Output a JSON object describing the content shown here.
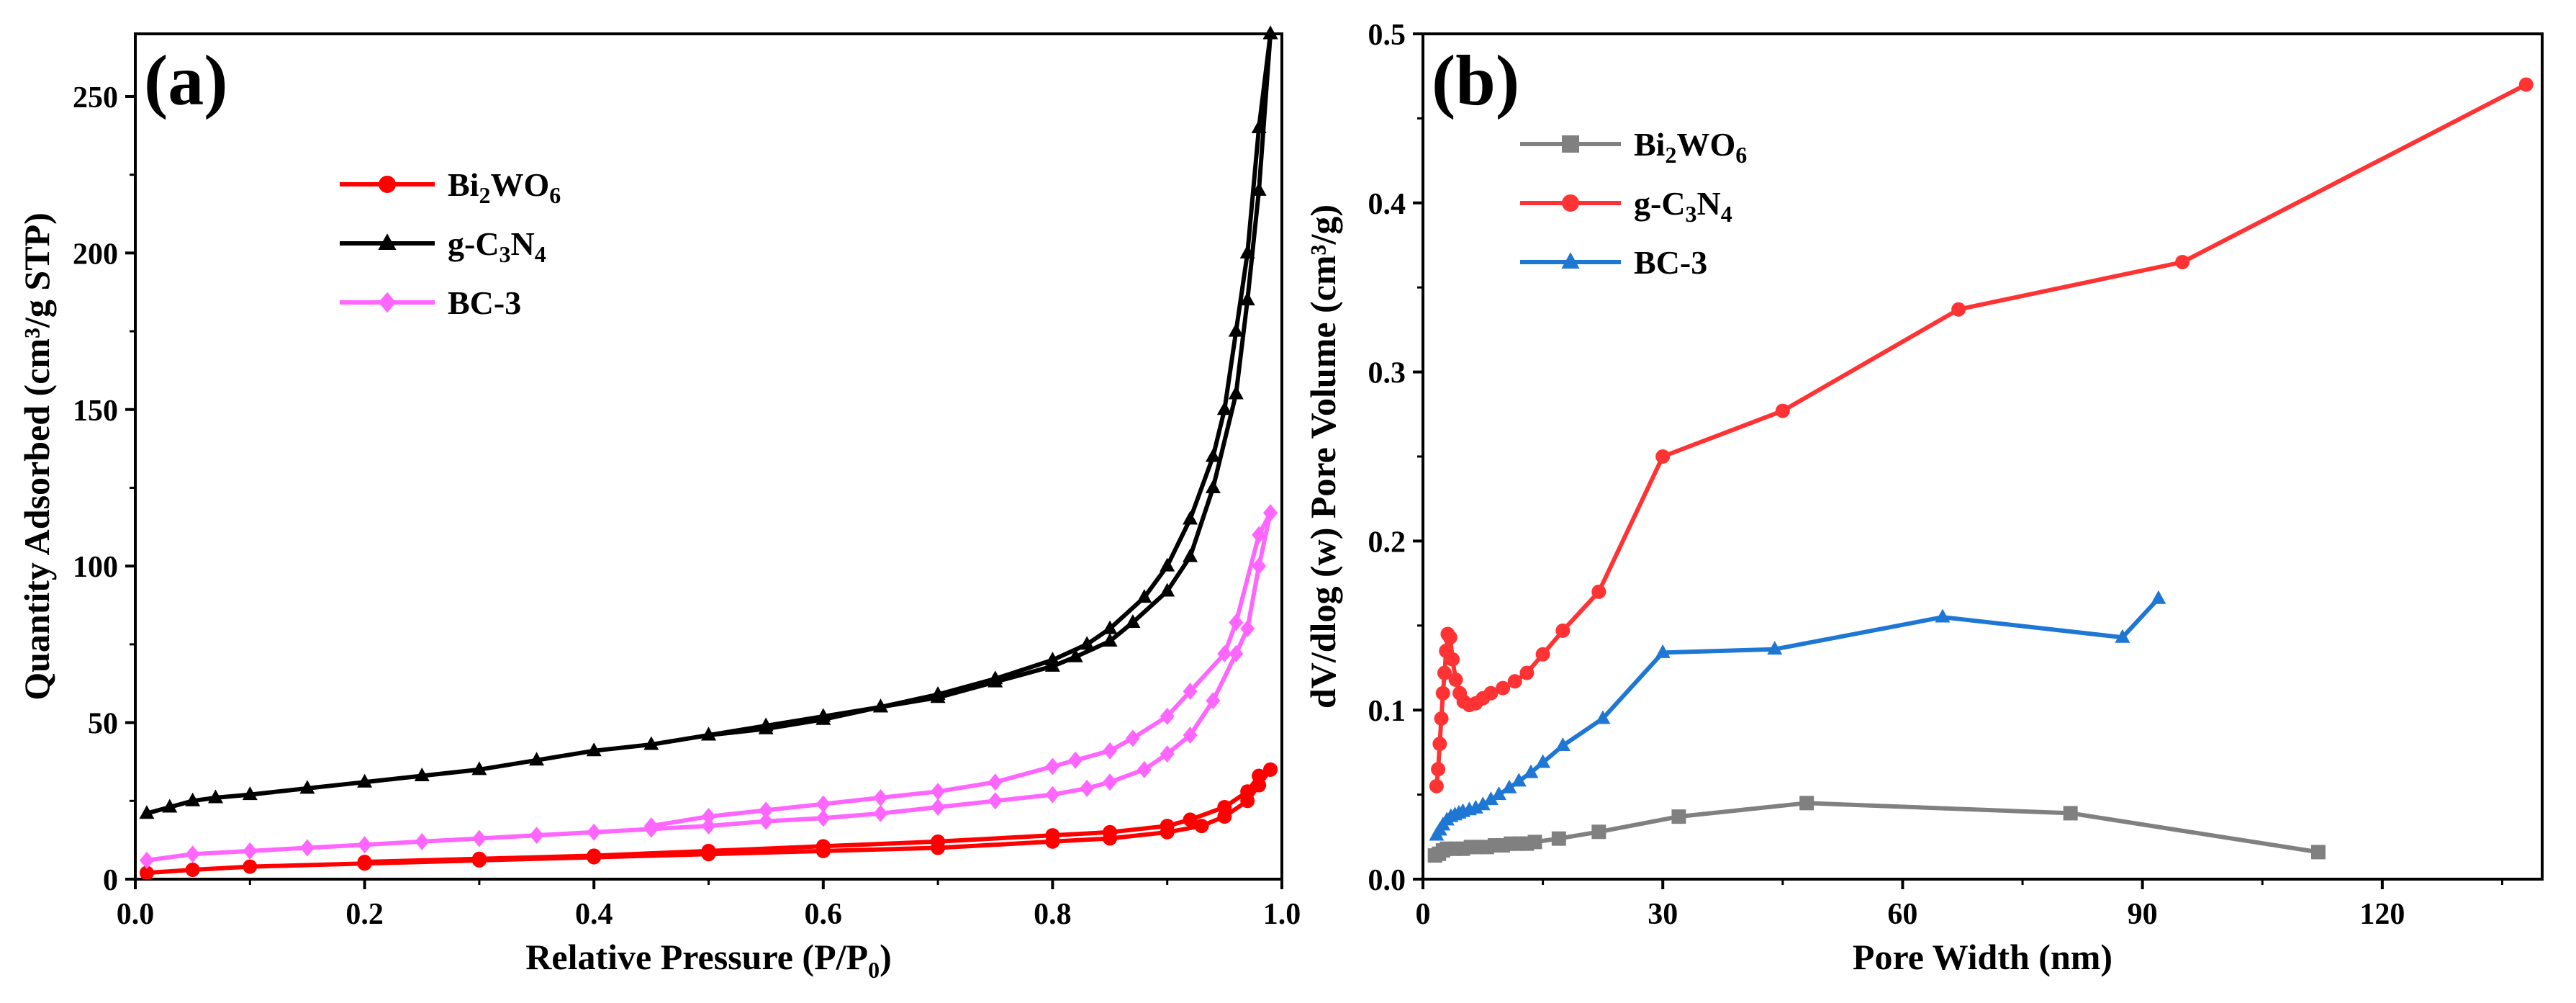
{
  "chart_data": [
    {
      "type": "line",
      "panel_label": "(a)",
      "xlabel": "Relative Pressure (P/P",
      "xlabel_sub": "0",
      "xlabel_end": ")",
      "ylabel": "Quantity Adsorbed (cm³/g STP)",
      "xlim": [
        0,
        1.0
      ],
      "ylim": [
        0,
        270
      ],
      "x_ticks": [
        "0.0",
        "0.2",
        "0.4",
        "0.6",
        "0.8",
        "1.0"
      ],
      "y_ticks": [
        "0",
        "50",
        "100",
        "150",
        "200",
        "250"
      ],
      "legend_position": "top-left",
      "series": [
        {
          "name": "Bi2WO6",
          "label_parts": [
            [
              "Bi",
              ""
            ],
            [
              "2",
              "sub"
            ],
            [
              "WO",
              ""
            ],
            [
              "6",
              "sub"
            ]
          ],
          "color": "#ff0000",
          "marker": "circle",
          "adsorption": [
            [
              0.01,
              2
            ],
            [
              0.05,
              3
            ],
            [
              0.1,
              4
            ],
            [
              0.2,
              5
            ],
            [
              0.3,
              6
            ],
            [
              0.4,
              7
            ],
            [
              0.5,
              8
            ],
            [
              0.6,
              9
            ],
            [
              0.7,
              10
            ],
            [
              0.8,
              12
            ],
            [
              0.85,
              13
            ],
            [
              0.9,
              15
            ],
            [
              0.93,
              17
            ],
            [
              0.95,
              20
            ],
            [
              0.97,
              25
            ],
            [
              0.98,
              30
            ],
            [
              0.99,
              35
            ]
          ],
          "desorption": [
            [
              0.99,
              35
            ],
            [
              0.98,
              33
            ],
            [
              0.97,
              28
            ],
            [
              0.95,
              23
            ],
            [
              0.92,
              19
            ],
            [
              0.9,
              17
            ],
            [
              0.85,
              15
            ],
            [
              0.8,
              14
            ],
            [
              0.7,
              12
            ],
            [
              0.6,
              10.5
            ],
            [
              0.5,
              9
            ],
            [
              0.4,
              7.5
            ],
            [
              0.3,
              6.5
            ],
            [
              0.2,
              5.5
            ]
          ]
        },
        {
          "name": "g-C3N4",
          "label_parts": [
            [
              "g-C",
              ""
            ],
            [
              "3",
              "sub"
            ],
            [
              "N",
              ""
            ],
            [
              "4",
              "sub"
            ]
          ],
          "color": "#000000",
          "marker": "triangle",
          "adsorption": [
            [
              0.01,
              21
            ],
            [
              0.03,
              23
            ],
            [
              0.05,
              25
            ],
            [
              0.07,
              26
            ],
            [
              0.1,
              27
            ],
            [
              0.15,
              29
            ],
            [
              0.2,
              31
            ],
            [
              0.25,
              33
            ],
            [
              0.3,
              35
            ],
            [
              0.35,
              38
            ],
            [
              0.4,
              41
            ],
            [
              0.45,
              43
            ],
            [
              0.5,
              46
            ],
            [
              0.55,
              48
            ],
            [
              0.6,
              51
            ],
            [
              0.65,
              55
            ],
            [
              0.7,
              59
            ],
            [
              0.75,
              64
            ],
            [
              0.8,
              70
            ],
            [
              0.83,
              75
            ],
            [
              0.85,
              80
            ],
            [
              0.88,
              90
            ],
            [
              0.9,
              100
            ],
            [
              0.92,
              115
            ],
            [
              0.94,
              135
            ],
            [
              0.95,
              150
            ],
            [
              0.96,
              175
            ],
            [
              0.97,
              200
            ],
            [
              0.98,
              240
            ],
            [
              0.99,
              270
            ]
          ],
          "desorption": [
            [
              0.99,
              270
            ],
            [
              0.98,
              220
            ],
            [
              0.97,
              185
            ],
            [
              0.96,
              155
            ],
            [
              0.94,
              125
            ],
            [
              0.92,
              103
            ],
            [
              0.9,
              92
            ],
            [
              0.87,
              82
            ],
            [
              0.85,
              76
            ],
            [
              0.82,
              71
            ],
            [
              0.8,
              68
            ],
            [
              0.75,
              63
            ],
            [
              0.7,
              58
            ],
            [
              0.65,
              55
            ],
            [
              0.6,
              52
            ],
            [
              0.55,
              49
            ],
            [
              0.5,
              46
            ]
          ]
        },
        {
          "name": "BC-3",
          "label_parts": [
            [
              "BC-3",
              ""
            ]
          ],
          "color": "#ff66ff",
          "marker": "diamond",
          "adsorption": [
            [
              0.01,
              6
            ],
            [
              0.05,
              8
            ],
            [
              0.1,
              9
            ],
            [
              0.15,
              10
            ],
            [
              0.2,
              11
            ],
            [
              0.25,
              12
            ],
            [
              0.3,
              13
            ],
            [
              0.35,
              14
            ],
            [
              0.4,
              15
            ],
            [
              0.45,
              16
            ],
            [
              0.5,
              17
            ],
            [
              0.55,
              18.5
            ],
            [
              0.6,
              19.5
            ],
            [
              0.65,
              21
            ],
            [
              0.7,
              23
            ],
            [
              0.75,
              25
            ],
            [
              0.8,
              27
            ],
            [
              0.83,
              29
            ],
            [
              0.85,
              31
            ],
            [
              0.88,
              35
            ],
            [
              0.9,
              40
            ],
            [
              0.92,
              46
            ],
            [
              0.94,
              57
            ],
            [
              0.96,
              72
            ],
            [
              0.97,
              80
            ],
            [
              0.98,
              100
            ],
            [
              0.99,
              117
            ]
          ],
          "desorption": [
            [
              0.99,
              117
            ],
            [
              0.98,
              110
            ],
            [
              0.96,
              82
            ],
            [
              0.95,
              72
            ],
            [
              0.92,
              60
            ],
            [
              0.9,
              52
            ],
            [
              0.87,
              45
            ],
            [
              0.85,
              41
            ],
            [
              0.82,
              38
            ],
            [
              0.8,
              36
            ],
            [
              0.75,
              31
            ],
            [
              0.7,
              28
            ],
            [
              0.65,
              26
            ],
            [
              0.6,
              24
            ],
            [
              0.55,
              22
            ],
            [
              0.5,
              20
            ],
            [
              0.45,
              17
            ]
          ]
        }
      ]
    },
    {
      "type": "line",
      "panel_label": "(b)",
      "xlabel": "Pore Width (nm)",
      "ylabel": "dV/dlog (w) Pore Volume (cm³/g)",
      "xlim": [
        0,
        140
      ],
      "ylim": [
        0,
        0.5
      ],
      "x_ticks": [
        "0",
        "30",
        "60",
        "90",
        "120"
      ],
      "x_tick_values": [
        0,
        30,
        60,
        90,
        120
      ],
      "y_ticks": [
        "0.0",
        "0.1",
        "0.2",
        "0.3",
        "0.4",
        "0.5"
      ],
      "legend_position": "top-left",
      "series": [
        {
          "name": "Bi2WO6",
          "label_parts": [
            [
              "Bi",
              ""
            ],
            [
              "2",
              "sub"
            ],
            [
              "WO",
              ""
            ],
            [
              "6",
              "sub"
            ]
          ],
          "color": "#808080",
          "marker": "square",
          "points": [
            [
              1.5,
              0.014
            ],
            [
              2,
              0.015
            ],
            [
              2.5,
              0.017
            ],
            [
              3,
              0.018
            ],
            [
              4,
              0.018
            ],
            [
              5,
              0.018
            ],
            [
              6,
              0.019
            ],
            [
              7,
              0.019
            ],
            [
              8,
              0.019
            ],
            [
              9,
              0.02
            ],
            [
              10,
              0.02
            ],
            [
              11,
              0.021
            ],
            [
              12,
              0.021
            ],
            [
              13,
              0.021
            ],
            [
              14,
              0.022
            ],
            [
              17,
              0.024
            ],
            [
              22,
              0.028
            ],
            [
              32,
              0.037
            ],
            [
              48,
              0.045
            ],
            [
              81,
              0.039
            ],
            [
              112,
              0.016
            ]
          ]
        },
        {
          "name": "g-C3N4",
          "label_parts": [
            [
              "g-C",
              ""
            ],
            [
              "3",
              "sub"
            ],
            [
              "N",
              ""
            ],
            [
              "4",
              "sub"
            ]
          ],
          "color": "#ff3333",
          "marker": "circle",
          "points": [
            [
              1.7,
              0.055
            ],
            [
              1.9,
              0.065
            ],
            [
              2.1,
              0.08
            ],
            [
              2.3,
              0.095
            ],
            [
              2.5,
              0.11
            ],
            [
              2.7,
              0.122
            ],
            [
              2.9,
              0.135
            ],
            [
              3.1,
              0.145
            ],
            [
              3.4,
              0.143
            ],
            [
              3.7,
              0.13
            ],
            [
              4.1,
              0.118
            ],
            [
              4.6,
              0.11
            ],
            [
              5.1,
              0.105
            ],
            [
              5.8,
              0.103
            ],
            [
              6.6,
              0.104
            ],
            [
              7.5,
              0.107
            ],
            [
              8.5,
              0.11
            ],
            [
              10,
              0.113
            ],
            [
              11.5,
              0.117
            ],
            [
              13,
              0.122
            ],
            [
              15,
              0.133
            ],
            [
              17.5,
              0.147
            ],
            [
              22,
              0.17
            ],
            [
              30,
              0.25
            ],
            [
              45,
              0.277
            ],
            [
              67,
              0.337
            ],
            [
              95,
              0.365
            ],
            [
              138,
              0.47
            ]
          ]
        },
        {
          "name": "BC-3",
          "label_parts": [
            [
              "BC-3",
              ""
            ]
          ],
          "color": "#1f77d4",
          "marker": "triangle",
          "points": [
            [
              1.7,
              0.026
            ],
            [
              2.1,
              0.029
            ],
            [
              2.5,
              0.032
            ],
            [
              3,
              0.035
            ],
            [
              3.5,
              0.037
            ],
            [
              4,
              0.038
            ],
            [
              4.5,
              0.039
            ],
            [
              5,
              0.04
            ],
            [
              5.8,
              0.041
            ],
            [
              6.6,
              0.042
            ],
            [
              7.5,
              0.044
            ],
            [
              8.5,
              0.047
            ],
            [
              9.5,
              0.05
            ],
            [
              10.8,
              0.054
            ],
            [
              12,
              0.058
            ],
            [
              13.5,
              0.063
            ],
            [
              15,
              0.069
            ],
            [
              17.5,
              0.079
            ],
            [
              22.5,
              0.095
            ],
            [
              30,
              0.134
            ],
            [
              44,
              0.136
            ],
            [
              65,
              0.155
            ],
            [
              87.5,
              0.143
            ],
            [
              92,
              0.166
            ]
          ]
        }
      ]
    }
  ]
}
